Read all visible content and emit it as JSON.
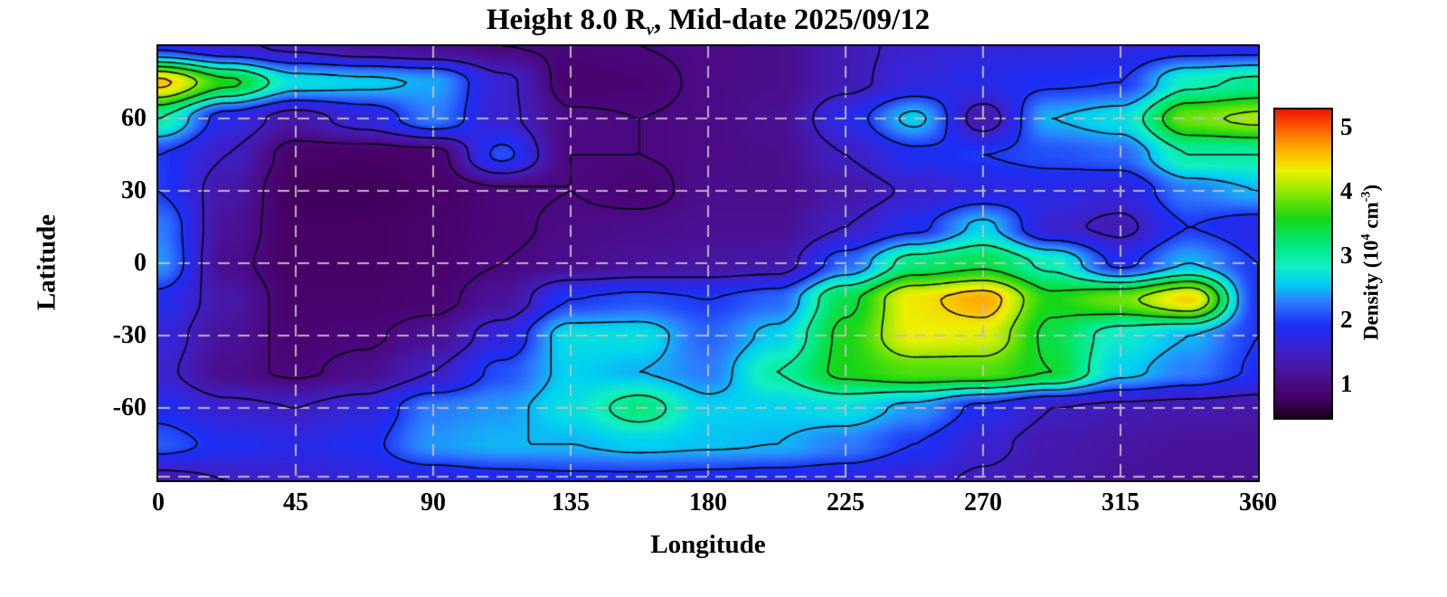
{
  "title": {
    "prefix": "Height 8.0 R",
    "subscript": "v",
    "suffix": ", Mid-date 2025/09/12"
  },
  "axes": {
    "x": {
      "label": "Longitude",
      "ticks": [
        0,
        45,
        90,
        135,
        180,
        225,
        270,
        315,
        360
      ],
      "range": [
        0,
        360
      ]
    },
    "y": {
      "label": "Latitude",
      "ticks": [
        60,
        30,
        0,
        -30,
        -60
      ],
      "range": [
        -90,
        90
      ]
    },
    "grid": {
      "x_lines": [
        45,
        90,
        135,
        180,
        225,
        270,
        315
      ],
      "y_lines": [
        60,
        30,
        0,
        -30,
        -60,
        -90
      ],
      "color": "#bebebe",
      "style": "dashed"
    }
  },
  "colorbar": {
    "label": {
      "prefix": "Density (10",
      "sup1": "4",
      "mid": " cm",
      "sup2": "-3",
      "suffix": ")"
    },
    "ticks": [
      1,
      2,
      3,
      4,
      5
    ],
    "range": [
      0.5,
      5.3
    ],
    "stops": [
      [
        0.5,
        "#16001e"
      ],
      [
        0.8,
        "#470065"
      ],
      [
        1.05,
        "#4b0b86"
      ],
      [
        1.3,
        "#4618a8"
      ],
      [
        1.6,
        "#3a22d0"
      ],
      [
        1.95,
        "#1c2ef5"
      ],
      [
        2.3,
        "#2e7cff"
      ],
      [
        2.6,
        "#00d2f0"
      ],
      [
        2.85,
        "#12eec4"
      ],
      [
        3.2,
        "#00e87c"
      ],
      [
        3.6,
        "#16d616"
      ],
      [
        4.0,
        "#8ae800"
      ],
      [
        4.35,
        "#eef000"
      ],
      [
        4.7,
        "#ffaa00"
      ],
      [
        5.0,
        "#ff5e00"
      ],
      [
        5.3,
        "#ee1500"
      ]
    ]
  },
  "chart_data": {
    "type": "heatmap",
    "title": "Height 8.0 Rv, Mid-date 2025/09/12",
    "xlabel": "Longitude",
    "ylabel": "Latitude",
    "units": "10^4 cm^-3",
    "xlim": [
      0,
      360
    ],
    "ylim": [
      -90,
      90
    ],
    "zlim": [
      0.5,
      5.3
    ],
    "contour_levels": [
      1,
      1.5,
      2,
      2.5,
      3,
      3.5,
      4,
      4.5
    ],
    "lon": [
      0,
      22.5,
      45,
      67.5,
      90,
      112.5,
      135,
      157.5,
      180,
      202.5,
      225,
      247.5,
      270,
      292.5,
      315,
      337.5,
      360
    ],
    "lat": [
      90,
      75,
      60,
      45,
      30,
      15,
      0,
      -15,
      -30,
      -45,
      -60,
      -75,
      -90
    ],
    "values": [
      [
        1.9,
        1.6,
        1.4,
        1.2,
        1.1,
        1.0,
        0.95,
        1.0,
        1.05,
        1.1,
        1.4,
        1.6,
        1.7,
        1.7,
        1.75,
        1.8,
        1.8
      ],
      [
        4.6,
        3.6,
        2.7,
        2.6,
        2.45,
        1.6,
        0.85,
        0.9,
        1.05,
        1.1,
        1.4,
        1.7,
        1.85,
        1.95,
        2.0,
        2.9,
        3.1
      ],
      [
        3.0,
        1.8,
        1.3,
        1.7,
        2.3,
        1.6,
        1.05,
        1.0,
        1.05,
        1.15,
        1.8,
        2.6,
        1.3,
        2.5,
        2.7,
        3.9,
        4.1
      ],
      [
        2.0,
        1.5,
        0.85,
        0.8,
        0.85,
        2.1,
        1.0,
        1.0,
        1.05,
        1.1,
        1.5,
        1.9,
        2.0,
        2.1,
        2.2,
        3.0,
        3.0
      ],
      [
        2.0,
        1.3,
        0.75,
        0.75,
        0.8,
        0.95,
        1.0,
        0.9,
        1.1,
        1.1,
        1.3,
        1.55,
        1.75,
        1.8,
        1.7,
        2.3,
        2.5
      ],
      [
        2.3,
        1.2,
        0.8,
        0.8,
        0.85,
        0.95,
        1.05,
        1.1,
        1.15,
        1.15,
        1.5,
        1.9,
        2.6,
        1.6,
        1.4,
        2.0,
        1.8
      ],
      [
        2.4,
        1.1,
        0.8,
        0.8,
        0.85,
        1.0,
        1.1,
        1.2,
        1.25,
        1.3,
        2.2,
        3.2,
        3.4,
        2.9,
        1.9,
        2.5,
        2.0
      ],
      [
        1.9,
        1.3,
        0.85,
        0.85,
        0.9,
        1.2,
        2.0,
        2.1,
        2.0,
        2.2,
        3.4,
        4.4,
        4.7,
        3.6,
        3.9,
        4.5,
        2.0
      ],
      [
        1.7,
        1.2,
        0.9,
        0.95,
        1.15,
        1.7,
        2.7,
        2.7,
        2.2,
        2.6,
        3.6,
        4.35,
        4.3,
        3.4,
        2.8,
        2.5,
        2.0
      ],
      [
        1.6,
        1.1,
        0.95,
        1.1,
        1.5,
        2.1,
        2.6,
        2.5,
        2.3,
        3.0,
        3.6,
        3.8,
        3.8,
        3.5,
        2.6,
        2.3,
        1.95
      ],
      [
        1.9,
        1.6,
        1.5,
        1.7,
        2.3,
        2.4,
        2.7,
        3.2,
        2.6,
        2.6,
        2.7,
        2.4,
        1.9,
        1.5,
        1.4,
        1.35,
        1.3
      ],
      [
        2.15,
        1.9,
        1.8,
        1.9,
        2.4,
        2.5,
        2.5,
        2.6,
        2.55,
        2.5,
        2.3,
        2.0,
        1.6,
        1.35,
        1.25,
        1.2,
        1.2
      ],
      [
        1.35,
        1.5,
        1.6,
        1.7,
        1.75,
        1.85,
        1.9,
        1.9,
        1.85,
        1.8,
        1.75,
        1.6,
        1.45,
        1.3,
        1.2,
        1.15,
        1.15
      ]
    ]
  }
}
